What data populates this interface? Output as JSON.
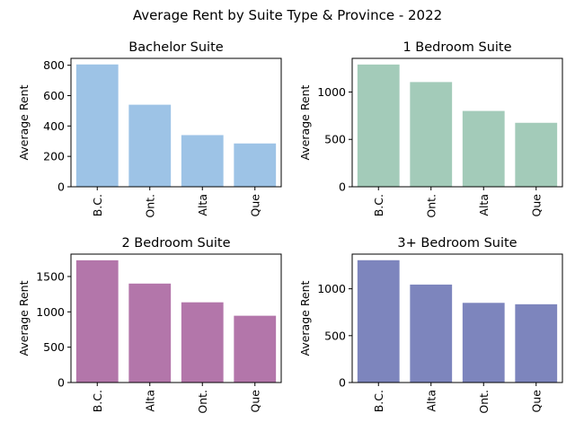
{
  "suptitle": "Average Rent by Suite Type & Province - 2022",
  "chart_data": [
    {
      "type": "bar",
      "title": "Bachelor Suite",
      "xlabel": "",
      "ylabel": "Average Rent",
      "categories": [
        "B.C.",
        "Ont.",
        "Alta",
        "Que"
      ],
      "values": [
        805,
        540,
        340,
        285
      ],
      "ylim": [
        0,
        845
      ],
      "yticks": [
        0,
        200,
        400,
        600,
        800
      ],
      "color": "#9dc3e6"
    },
    {
      "type": "bar",
      "title": "1 Bedroom Suite",
      "xlabel": "",
      "ylabel": "Average Rent",
      "categories": [
        "B.C.",
        "Ont.",
        "Alta",
        "Que"
      ],
      "values": [
        1290,
        1105,
        800,
        675
      ],
      "ylim": [
        0,
        1355
      ],
      "yticks": [
        0,
        500,
        1000
      ],
      "color": "#a3cbb9"
    },
    {
      "type": "bar",
      "title": "2 Bedroom Suite",
      "xlabel": "",
      "ylabel": "Average Rent",
      "categories": [
        "B.C.",
        "Alta",
        "Ont.",
        "Que"
      ],
      "values": [
        1730,
        1400,
        1135,
        945
      ],
      "ylim": [
        0,
        1817
      ],
      "yticks": [
        0,
        500,
        1000,
        1500
      ],
      "color": "#b376aa"
    },
    {
      "type": "bar",
      "title": "3+ Bedroom Suite",
      "xlabel": "",
      "ylabel": "Average Rent",
      "categories": [
        "B.C.",
        "Alta",
        "Ont.",
        "Que"
      ],
      "values": [
        1305,
        1045,
        850,
        835
      ],
      "ylim": [
        0,
        1370
      ],
      "yticks": [
        0,
        500,
        1000
      ],
      "color": "#7d85bd"
    }
  ]
}
